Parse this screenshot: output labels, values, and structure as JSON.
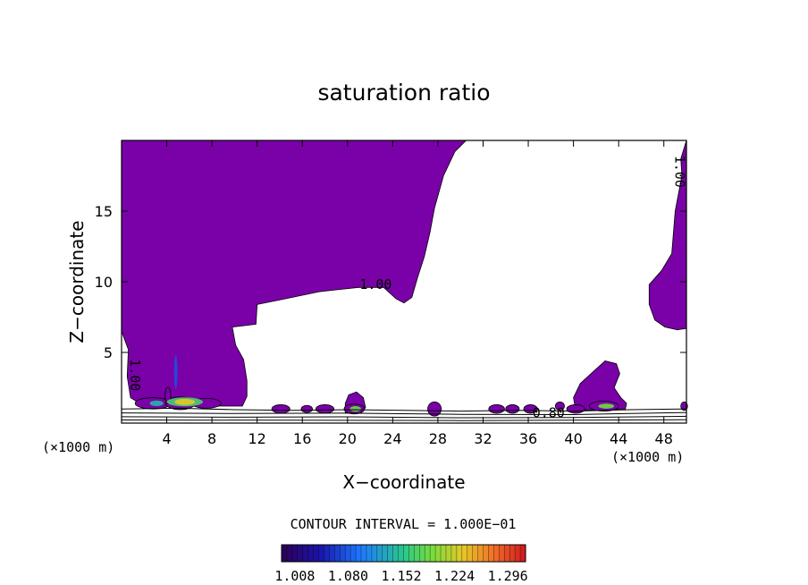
{
  "chart_data": {
    "type": "contour",
    "title": "saturation ratio",
    "xlabel": "X−coordinate",
    "ylabel": "Z−coordinate",
    "x_unit_left": "(×1000 m)",
    "x_unit_right": "(×1000 m)",
    "xlim": [
      0,
      50
    ],
    "ylim": [
      0,
      20
    ],
    "x_ticks": [
      "4",
      "8",
      "12",
      "16",
      "20",
      "24",
      "28",
      "32",
      "36",
      "40",
      "44",
      "48"
    ],
    "x_tick_values": [
      4,
      8,
      12,
      16,
      20,
      24,
      28,
      32,
      36,
      40,
      44,
      48
    ],
    "y_ticks": [
      "5",
      "10",
      "15"
    ],
    "y_tick_values": [
      5,
      10,
      15
    ],
    "contour_labels": [
      {
        "text": "1.00",
        "x": 22.5,
        "y": 9.5,
        "rotate": 0
      },
      {
        "text": "0.80",
        "x": 37.8,
        "y": 0.4,
        "rotate": 0
      },
      {
        "text": "1.00",
        "x": 49.0,
        "y": 17.8,
        "rotate": 90
      },
      {
        "text": "1.00",
        "x": 0.8,
        "y": 3.4,
        "rotate": 90
      }
    ],
    "contour_interval": "CONTOUR INTERVAL = 1.000E−01",
    "colorbar_ticks": [
      "1.008",
      "1.080",
      "1.152",
      "1.224",
      "1.296"
    ],
    "colorbar_range": [
      0.99,
      1.32
    ],
    "colors": {
      "supersaturated_fill": "#7a00a8",
      "line": "#000000",
      "background": "#ffffff"
    },
    "regions": [
      {
        "name": "upper-left-supersaturated",
        "outline": [
          [
            0,
            20
          ],
          [
            30.5,
            20
          ],
          [
            29.5,
            19.2
          ],
          [
            28.5,
            17.5
          ],
          [
            27.7,
            15.2
          ],
          [
            27.3,
            13.5
          ],
          [
            26.8,
            11.8
          ],
          [
            26.2,
            10.3
          ],
          [
            25.7,
            8.9
          ],
          [
            25.0,
            8.5
          ],
          [
            24.3,
            8.8
          ],
          [
            23.2,
            9.6
          ],
          [
            21.0,
            9.6
          ],
          [
            17.5,
            9.3
          ],
          [
            14.5,
            8.8
          ],
          [
            12.0,
            8.4
          ],
          [
            11.9,
            7.0
          ],
          [
            10.9,
            6.9
          ],
          [
            9.8,
            6.8
          ],
          [
            10.1,
            5.5
          ],
          [
            10.8,
            4.5
          ],
          [
            11.1,
            3.0
          ],
          [
            11.1,
            1.9
          ],
          [
            10.7,
            1.2
          ],
          [
            6.0,
            1.2
          ],
          [
            1.8,
            1.3
          ],
          [
            0.8,
            1.8
          ],
          [
            0.5,
            3.3
          ],
          [
            0.6,
            5.2
          ],
          [
            0,
            6.5
          ]
        ]
      },
      {
        "name": "right-edge-supersaturated",
        "outline": [
          [
            50,
            20
          ],
          [
            49.5,
            18.7
          ],
          [
            49.6,
            17.5
          ],
          [
            49.0,
            15.0
          ],
          [
            48.7,
            12.0
          ],
          [
            47.8,
            10.8
          ],
          [
            46.7,
            9.8
          ],
          [
            46.7,
            8.4
          ],
          [
            47.2,
            7.3
          ],
          [
            48.1,
            6.8
          ],
          [
            49.2,
            6.6
          ],
          [
            50,
            6.7
          ]
        ]
      },
      {
        "name": "dome-x42",
        "outline": [
          [
            40.2,
            0.9
          ],
          [
            40.0,
            1.8
          ],
          [
            40.6,
            2.8
          ],
          [
            41.7,
            3.6
          ],
          [
            42.8,
            4.4
          ],
          [
            43.8,
            4.2
          ],
          [
            44.1,
            3.5
          ],
          [
            43.6,
            2.5
          ],
          [
            44.2,
            1.8
          ],
          [
            44.7,
            1.4
          ],
          [
            44.6,
            1.0
          ]
        ]
      },
      {
        "name": "blob-x21",
        "outline": [
          [
            19.8,
            0.7
          ],
          [
            19.8,
            1.4
          ],
          [
            20.1,
            2.0
          ],
          [
            20.8,
            2.2
          ],
          [
            21.4,
            1.8
          ],
          [
            21.6,
            1.1
          ],
          [
            21.2,
            0.7
          ]
        ]
      }
    ],
    "cells": [
      {
        "x": 2.8,
        "y": 1.4,
        "rx": 1.6,
        "ry": 0.4
      },
      {
        "x": 5.2,
        "y": 1.4,
        "rx": 1.3,
        "ry": 0.45
      },
      {
        "x": 7.5,
        "y": 1.4,
        "rx": 1.3,
        "ry": 0.35
      },
      {
        "x": 4.1,
        "y": 1.95,
        "rx": 0.25,
        "ry": 0.6
      },
      {
        "x": 14.1,
        "y": 1.0,
        "rx": 0.8,
        "ry": 0.3
      },
      {
        "x": 16.4,
        "y": 1.0,
        "rx": 0.5,
        "ry": 0.25
      },
      {
        "x": 18.0,
        "y": 1.0,
        "rx": 0.8,
        "ry": 0.3
      },
      {
        "x": 20.6,
        "y": 1.0,
        "rx": 0.9,
        "ry": 0.35
      },
      {
        "x": 27.7,
        "y": 1.0,
        "rx": 0.6,
        "ry": 0.5
      },
      {
        "x": 33.2,
        "y": 1.0,
        "rx": 0.7,
        "ry": 0.3
      },
      {
        "x": 34.6,
        "y": 1.0,
        "rx": 0.6,
        "ry": 0.3
      },
      {
        "x": 36.2,
        "y": 1.0,
        "rx": 0.6,
        "ry": 0.3
      },
      {
        "x": 38.8,
        "y": 1.2,
        "rx": 0.4,
        "ry": 0.3
      },
      {
        "x": 40.2,
        "y": 1.0,
        "rx": 0.8,
        "ry": 0.3
      },
      {
        "x": 42.7,
        "y": 1.2,
        "rx": 1.3,
        "ry": 0.35
      },
      {
        "x": 49.8,
        "y": 1.2,
        "rx": 0.3,
        "ry": 0.3
      }
    ],
    "hotspots": [
      {
        "x": 5.6,
        "y": 1.5,
        "rx": 1.6,
        "ry": 0.32,
        "level": 0.55
      },
      {
        "x": 5.6,
        "y": 1.5,
        "rx": 0.9,
        "ry": 0.22,
        "level": 0.75
      },
      {
        "x": 3.1,
        "y": 1.4,
        "rx": 0.6,
        "ry": 0.2,
        "level": 0.45
      },
      {
        "x": 20.7,
        "y": 1.0,
        "rx": 0.5,
        "ry": 0.2,
        "level": 0.6
      },
      {
        "x": 42.9,
        "y": 1.2,
        "rx": 0.7,
        "ry": 0.18,
        "level": 0.6
      },
      {
        "x": 4.8,
        "y": 3.6,
        "rx": 0.15,
        "ry": 1.2,
        "level": 0.25
      }
    ],
    "contour_lines": [
      [
        [
          0,
          1.0
        ],
        [
          5,
          1.05
        ],
        [
          10,
          0.95
        ],
        [
          15,
          0.9
        ],
        [
          20,
          0.95
        ],
        [
          25,
          0.9
        ],
        [
          30,
          0.85
        ],
        [
          35,
          0.9
        ],
        [
          40,
          0.85
        ],
        [
          45,
          0.95
        ],
        [
          50,
          1.0
        ]
      ],
      [
        [
          0,
          0.72
        ],
        [
          10,
          0.68
        ],
        [
          20,
          0.7
        ],
        [
          30,
          0.62
        ],
        [
          40,
          0.6
        ],
        [
          45,
          0.68
        ],
        [
          50,
          0.75
        ]
      ],
      [
        [
          0,
          0.45
        ],
        [
          10,
          0.42
        ],
        [
          20,
          0.44
        ],
        [
          30,
          0.38
        ],
        [
          40,
          0.4
        ],
        [
          50,
          0.48
        ]
      ],
      [
        [
          0,
          0.22
        ],
        [
          15,
          0.2
        ],
        [
          30,
          0.18
        ],
        [
          50,
          0.24
        ]
      ]
    ]
  }
}
